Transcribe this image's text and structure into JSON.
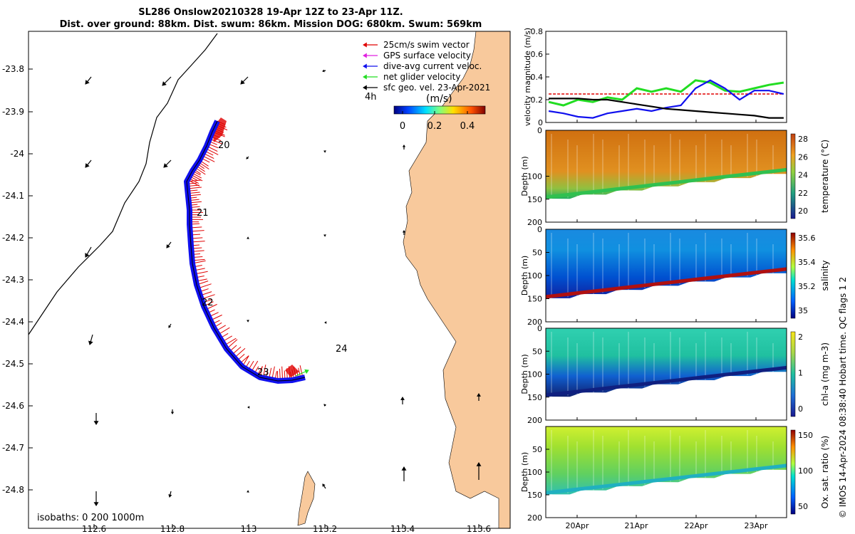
{
  "header": {
    "line1": "SL286 Onslow20210328 19-Apr 12Z to 23-Apr 11Z.",
    "line2": "Dist. over ground: 88km. Dist. swum: 86km. Mission DOG: 680km. Swum: 569km"
  },
  "map": {
    "x_ticks": [
      "112.6",
      "112.8",
      "113",
      "113.2",
      "113.4",
      "113.6"
    ],
    "y_ticks": [
      "-23.8",
      "-23.9",
      "-24",
      "-24.1",
      "-24.2",
      "-24.3",
      "-24.4",
      "-24.5",
      "-24.6",
      "-24.7",
      "-24.8"
    ],
    "day_labels": [
      "20",
      "21",
      "22",
      "23",
      "24"
    ],
    "isobaths_label": "isobaths: 0   200  1000m",
    "legend": [
      {
        "label": "25cm/s swim vector",
        "color": "#e00000"
      },
      {
        "label": "GPS surface velocity",
        "color": "#e020e0"
      },
      {
        "label": "dive-avg current veloc.",
        "color": "#1010ee"
      },
      {
        "label": "net glider velocity",
        "color": "#22dd22"
      },
      {
        "label": "sfc geo. vel. 23-Apr-2021",
        "color": "#000000"
      }
    ],
    "interval_label": "4h",
    "colorbar_units": "(m/s)",
    "colorbar_ticks": [
      "0",
      "0.2",
      "0.4"
    ],
    "land_color": "#f8c99c"
  },
  "chart_data": [
    {
      "type": "line",
      "title": "",
      "ylabel": "velocity magnitude (m/s)",
      "ylim": [
        0,
        0.8
      ],
      "y_ticks": [
        "0",
        "0.2",
        "0.4",
        "0.6",
        "0.8"
      ],
      "x_ticks": [
        "20Apr",
        "21Apr",
        "22Apr",
        "23Apr"
      ],
      "x": [
        19.5,
        19.75,
        20.0,
        20.25,
        20.5,
        20.75,
        21.0,
        21.25,
        21.5,
        21.75,
        22.0,
        22.25,
        22.5,
        22.75,
        23.0,
        23.25,
        23.5
      ],
      "series": [
        {
          "name": "swim speed",
          "color": "#e00000",
          "values": [
            0.25,
            0.25,
            0.25,
            0.25,
            0.25,
            0.25,
            0.25,
            0.25,
            0.25,
            0.25,
            0.25,
            0.25,
            0.25,
            0.25,
            0.25,
            0.25,
            0.25
          ]
        },
        {
          "name": "net glider velocity",
          "color": "#22dd22",
          "values": [
            0.18,
            0.15,
            0.2,
            0.18,
            0.22,
            0.2,
            0.3,
            0.27,
            0.3,
            0.27,
            0.37,
            0.35,
            0.28,
            0.27,
            0.3,
            0.33,
            0.35
          ]
        },
        {
          "name": "dive-avg current",
          "color": "#1010ee",
          "values": [
            0.1,
            0.08,
            0.05,
            0.04,
            0.08,
            0.1,
            0.12,
            0.1,
            0.13,
            0.15,
            0.3,
            0.37,
            0.3,
            0.2,
            0.28,
            0.28,
            0.25
          ]
        },
        {
          "name": "sfc geo. vel.",
          "color": "#000000",
          "values": [
            0.21,
            0.21,
            0.21,
            0.2,
            0.2,
            0.18,
            0.16,
            0.14,
            0.12,
            0.11,
            0.1,
            0.09,
            0.08,
            0.07,
            0.06,
            0.04,
            0.04
          ]
        }
      ]
    },
    {
      "type": "heatmap",
      "ylabel": "Depth (m)",
      "clabel": "temperature (°C)",
      "y_ticks": [
        "0",
        "100",
        "150",
        "200"
      ],
      "c_ticks": [
        "28",
        "26",
        "24",
        "22",
        "20"
      ],
      "x_ticks": [
        "20Apr",
        "21Apr",
        "22Apr",
        "23Apr"
      ],
      "variable": "temperature"
    },
    {
      "type": "heatmap",
      "ylabel": "Depth (m)",
      "clabel": "salinity",
      "y_ticks": [
        "0",
        "50",
        "100",
        "150",
        "200"
      ],
      "c_ticks": [
        "35.6",
        "35.4",
        "35.2",
        "35"
      ],
      "x_ticks": [
        "20Apr",
        "21Apr",
        "22Apr",
        "23Apr"
      ],
      "variable": "salinity"
    },
    {
      "type": "heatmap",
      "ylabel": "Depth (m)",
      "clabel": "chl-a (mg m-3)",
      "y_ticks": [
        "0",
        "50",
        "100",
        "150",
        "200"
      ],
      "c_ticks": [
        "2",
        "1",
        "0"
      ],
      "x_ticks": [
        "20Apr",
        "21Apr",
        "22Apr",
        "23Apr"
      ],
      "variable": "chl-a"
    },
    {
      "type": "heatmap",
      "ylabel": "Depth (m)",
      "clabel": "Ox. sat. ratio (%)",
      "y_ticks": [
        "50",
        "100",
        "150",
        "200"
      ],
      "c_ticks": [
        "150",
        "100",
        "50"
      ],
      "x_ticks": [
        "20Apr",
        "21Apr",
        "22Apr",
        "23Apr"
      ],
      "variable": "oxygen"
    }
  ],
  "credit": "© IMOS 14-Apr-2024 08:38:40 Hobart time. QC flags 1  2"
}
